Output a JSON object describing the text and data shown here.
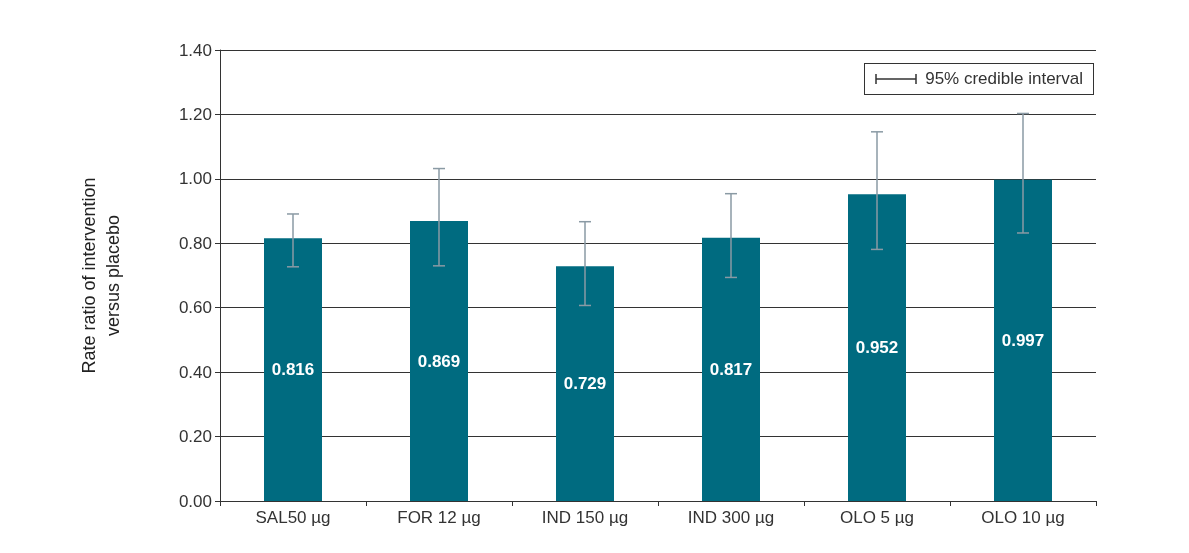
{
  "chart_data": {
    "type": "bar",
    "ylabel": "Rate ratio of intervention\nversus placebo",
    "categories": [
      "SAL50 µg",
      "FOR 12 µg",
      "IND 150 µg",
      "IND 300 µg",
      "OLO 5 µg",
      "OLO 10 µg"
    ],
    "values": [
      0.816,
      0.869,
      0.729,
      0.817,
      0.952,
      0.997
    ],
    "errors": [
      [
        0.727,
        0.891
      ],
      [
        0.73,
        1.032
      ],
      [
        0.607,
        0.867
      ],
      [
        0.694,
        0.954
      ],
      [
        0.781,
        1.146
      ],
      [
        0.832,
        1.203
      ]
    ],
    "color": "#006b80",
    "data_labels": true,
    "ylim": [
      0,
      1.4
    ],
    "yticks": [
      {
        "value": 0,
        "label": "0.00"
      },
      {
        "value": 0.2,
        "label": "0.20"
      },
      {
        "value": 0.4,
        "label": "0.40"
      },
      {
        "value": 0.6,
        "label": "0.60"
      },
      {
        "value": 0.8,
        "label": "0.80"
      },
      {
        "value": 1.0,
        "label": "1.00"
      },
      {
        "value": 1.2,
        "label": "1.20"
      },
      {
        "value": 1.4,
        "label": "1.40"
      }
    ],
    "grid": "y",
    "annotations": [
      "95% credible interval"
    ]
  }
}
